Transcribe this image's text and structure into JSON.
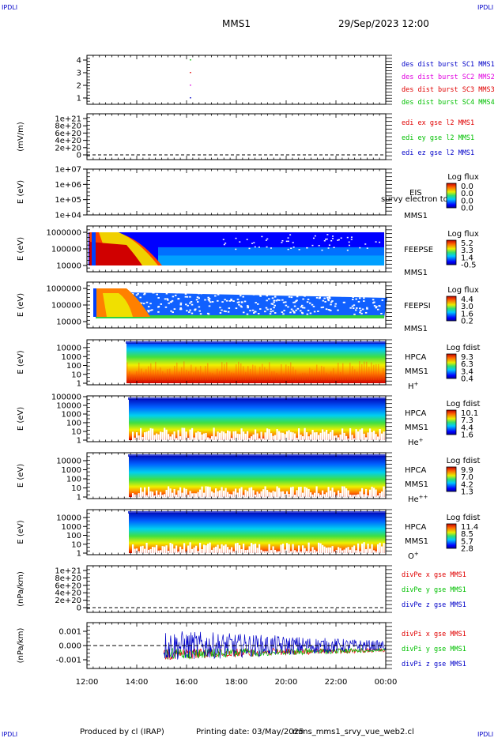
{
  "header": {
    "corner_tl": "IPDLI",
    "corner_tr": "IPDLI",
    "corner_bl": "IPDLI",
    "corner_br": "IPDLI",
    "spacecraft": "MMS1",
    "datetime": "29/Sep/2023 12:00"
  },
  "footer": {
    "produced_by": "Produced by cl (IRAP)",
    "printing_date": "Printing date: 03/May/2025",
    "script_name": "mms_mms1_srvy_vue_web2.cl"
  },
  "colors": {
    "blue": "#0000c8",
    "magenta": "#e000e0",
    "red": "#e00000",
    "green": "#00c000"
  },
  "chart_data": [
    {
      "id": "burst",
      "type": "scatter",
      "title": "",
      "ylabel": "",
      "yticks": [
        "4",
        "3",
        "2",
        "1"
      ],
      "legend": [
        {
          "name": "des dist burst SC1 MMS1",
          "color": "#0000c8"
        },
        {
          "name": "des dist burst SC2 MMS2",
          "color": "#e000e0"
        },
        {
          "name": "des dist burst SC3 MMS3",
          "color": "#e00000"
        },
        {
          "name": "des dist burst SC4 MMS4",
          "color": "#00c000"
        }
      ],
      "points": [
        {
          "x": "16:08",
          "y": 4
        },
        {
          "x": "16:08",
          "y": 3
        },
        {
          "x": "16:08",
          "y": 2
        },
        {
          "x": "16:08",
          "y": 1
        }
      ]
    },
    {
      "id": "edi",
      "type": "line",
      "ylabel": "(mV/m)",
      "yticks": [
        "1e+21",
        "8e+20",
        "6e+20",
        "4e+20",
        "2e+20",
        "0"
      ],
      "legend": [
        {
          "name": "edi ex gse l2 MMS1",
          "color": "#e00000"
        },
        {
          "name": "edi ey gse l2 MMS1",
          "color": "#00c000"
        },
        {
          "name": "edi ez gse l2 MMS1",
          "color": "#0000c8"
        }
      ]
    },
    {
      "id": "eis",
      "type": "heatmap",
      "ylabel": "E (eV)",
      "yticks": [
        "1e+07",
        "1e+06",
        "1e+05",
        "1e+04"
      ],
      "instrument": "EIS",
      "instrument_overlap": "survy electron to",
      "sc": "MMS1",
      "cbar_title": "Log flux",
      "cbar_ticks": [
        "0.0",
        "0.0",
        "0.0",
        "0.0"
      ]
    },
    {
      "id": "feepse",
      "type": "heatmap",
      "ylabel": "E (eV)",
      "yticks": [
        "1000000",
        "100000",
        "10000"
      ],
      "instrument": "FEEPSE",
      "sc": "MMS1",
      "cbar_title": "Log flux",
      "cbar_ticks": [
        "5.2",
        "3.3",
        "1.4",
        "-0.5"
      ]
    },
    {
      "id": "feepsi",
      "type": "heatmap",
      "ylabel": "E (eV)",
      "yticks": [
        "1000000",
        "100000",
        "10000"
      ],
      "instrument": "FEEPSI",
      "sc": "MMS1",
      "cbar_title": "Log flux",
      "cbar_ticks": [
        "4.4",
        "3.0",
        "1.6",
        "0.2"
      ]
    },
    {
      "id": "hpca_h",
      "type": "heatmap",
      "ylabel": "E (eV)",
      "yticks": [
        "10000",
        "1000",
        "100",
        "10",
        "1"
      ],
      "instrument": "HPCA",
      "sc": "MMS1",
      "species": "H",
      "species_sup": "+",
      "cbar_title": "Log fdist",
      "cbar_ticks": [
        "9.3",
        "6.3",
        "3.4",
        "0.4"
      ]
    },
    {
      "id": "hpca_he",
      "type": "heatmap",
      "ylabel": "E (eV)",
      "yticks": [
        "100000",
        "10000",
        "1000",
        "100",
        "10",
        "1"
      ],
      "instrument": "HPCA",
      "sc": "MMS1",
      "species": "He",
      "species_sup": "+",
      "cbar_title": "Log fdist",
      "cbar_ticks": [
        "10.1",
        "7.3",
        "4.4",
        "1.6"
      ]
    },
    {
      "id": "hpca_hepp",
      "type": "heatmap",
      "ylabel": "E (eV)",
      "yticks": [
        "10000",
        "1000",
        "100",
        "10",
        "1"
      ],
      "instrument": "HPCA",
      "sc": "MMS1",
      "species": "He",
      "species_sup": "++",
      "cbar_title": "Log fdist",
      "cbar_ticks": [
        "9.9",
        "7.0",
        "4.2",
        "1.3"
      ]
    },
    {
      "id": "hpca_o",
      "type": "heatmap",
      "ylabel": "E (eV)",
      "yticks": [
        "10000",
        "1000",
        "100",
        "10",
        "1"
      ],
      "instrument": "HPCA",
      "sc": "MMS1",
      "species": "O",
      "species_sup": "+",
      "cbar_title": "Log fdist",
      "cbar_ticks": [
        "11.4",
        "8.5",
        "5.7",
        "2.8"
      ]
    },
    {
      "id": "divpe",
      "type": "line",
      "ylabel": "(nPa/km)",
      "yticks": [
        "1e+21",
        "8e+20",
        "6e+20",
        "4e+20",
        "2e+20",
        "0"
      ],
      "legend": [
        {
          "name": "divPe x gse MMS1",
          "color": "#e00000"
        },
        {
          "name": "divPe y gse MMS1",
          "color": "#00c000"
        },
        {
          "name": "divPe z gse MMS1",
          "color": "#0000c8"
        }
      ]
    },
    {
      "id": "divpi",
      "type": "line",
      "ylabel": "(nPa/km)",
      "yticks": [
        "0.001",
        "0.000",
        "-0.001"
      ],
      "ylim": [
        -0.0015,
        0.0015
      ],
      "legend": [
        {
          "name": "divPi x gse MMS1",
          "color": "#e00000"
        },
        {
          "name": "divPi y gse MMS1",
          "color": "#00c000"
        },
        {
          "name": "divPi z gse MMS1",
          "color": "#0000c8"
        }
      ]
    }
  ],
  "xaxis": {
    "ticks": [
      "12:00",
      "14:00",
      "16:00",
      "18:00",
      "20:00",
      "22:00",
      "00:00"
    ]
  }
}
